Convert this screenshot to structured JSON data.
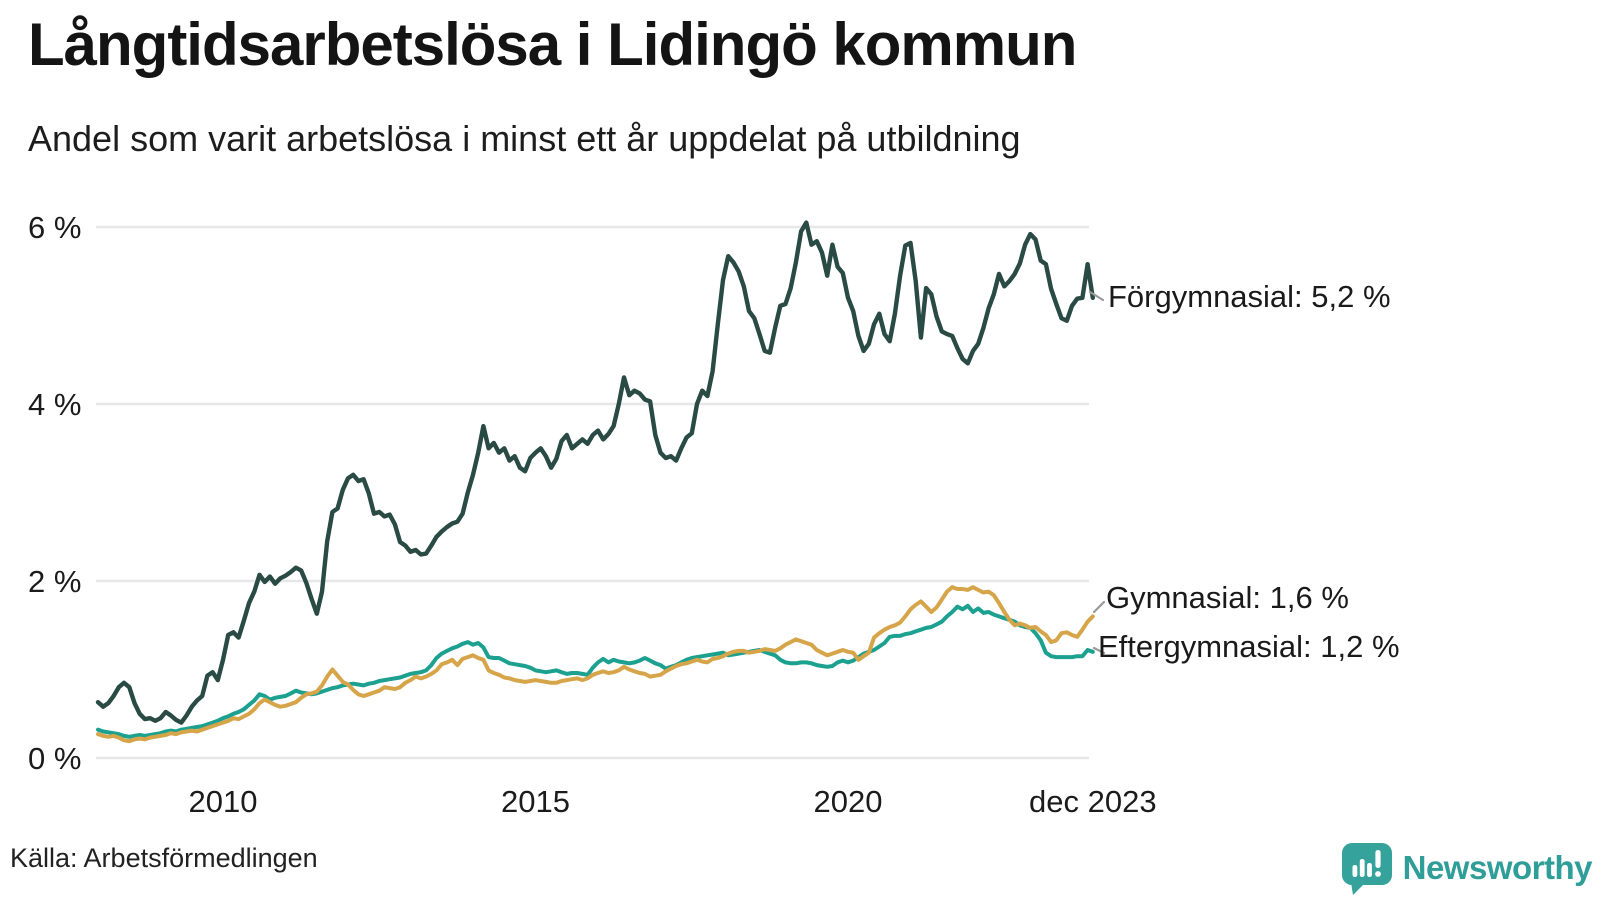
{
  "header": {
    "title": "Långtidsarbetslösa i Lidingö kommun",
    "subtitle": "Andel som varit arbetslösa i minst ett år uppdelat på utbildning"
  },
  "footer": {
    "source": "Källa: Arbetsförmedlingen",
    "brand": "Newsworthy",
    "brand_color": "#2f9e98"
  },
  "chart_data": {
    "type": "line",
    "title": "Långtidsarbetslösa i Lidingö kommun",
    "subtitle": "Andel som varit arbetslösa i minst ett år uppdelat på utbildning",
    "x_start_year": 2008,
    "x_end": "dec 2023",
    "points_per_year": 12,
    "ylim": [
      0,
      6.3
    ],
    "grid": "horizontal",
    "legend_position": "right-end-labels",
    "yticks": [
      {
        "value": 0,
        "label": "0 %"
      },
      {
        "value": 2,
        "label": "2 %"
      },
      {
        "value": 4,
        "label": "4 %"
      },
      {
        "value": 6,
        "label": "6 %"
      }
    ],
    "xticks": [
      {
        "value": 2010,
        "label": "2010"
      },
      {
        "value": 2015,
        "label": "2015"
      },
      {
        "value": 2020,
        "label": "2020"
      },
      {
        "value": 2023.917,
        "label": "dec 2023"
      }
    ],
    "series": [
      {
        "name": "Förgymnasial",
        "color": "#2a4a44",
        "stroke_width": 4.4,
        "end_label": "Förgymnasial: 5,2 %",
        "end_value": 5.2,
        "values": [
          0.63,
          0.58,
          0.62,
          0.7,
          0.8,
          0.85,
          0.8,
          0.62,
          0.5,
          0.44,
          0.45,
          0.42,
          0.45,
          0.52,
          0.48,
          0.43,
          0.4,
          0.48,
          0.58,
          0.65,
          0.7,
          0.93,
          0.97,
          0.88,
          1.11,
          1.39,
          1.42,
          1.36,
          1.55,
          1.75,
          1.88,
          2.07,
          1.99,
          2.05,
          1.97,
          2.03,
          2.06,
          2.1,
          2.15,
          2.12,
          1.98,
          1.8,
          1.63,
          1.88,
          2.45,
          2.78,
          2.82,
          3.03,
          3.16,
          3.2,
          3.13,
          3.15,
          2.99,
          2.76,
          2.78,
          2.73,
          2.75,
          2.64,
          2.44,
          2.4,
          2.33,
          2.35,
          2.3,
          2.31,
          2.4,
          2.5,
          2.56,
          2.61,
          2.65,
          2.67,
          2.76,
          3.0,
          3.2,
          3.45,
          3.75,
          3.5,
          3.56,
          3.45,
          3.5,
          3.36,
          3.41,
          3.28,
          3.24,
          3.39,
          3.45,
          3.5,
          3.41,
          3.28,
          3.38,
          3.58,
          3.65,
          3.5,
          3.55,
          3.6,
          3.55,
          3.65,
          3.7,
          3.6,
          3.66,
          3.75,
          4.0,
          4.3,
          4.1,
          4.15,
          4.12,
          4.05,
          4.03,
          3.65,
          3.45,
          3.39,
          3.41,
          3.36,
          3.5,
          3.62,
          3.67,
          4.0,
          4.15,
          4.09,
          4.37,
          4.9,
          5.4,
          5.67,
          5.6,
          5.5,
          5.33,
          5.05,
          4.97,
          4.79,
          4.6,
          4.58,
          4.86,
          5.11,
          5.13,
          5.31,
          5.6,
          5.95,
          6.05,
          5.8,
          5.84,
          5.71,
          5.45,
          5.8,
          5.55,
          5.48,
          5.2,
          5.05,
          4.77,
          4.6,
          4.68,
          4.9,
          5.02,
          4.79,
          4.71,
          5.02,
          5.45,
          5.79,
          5.82,
          5.39,
          4.75,
          5.31,
          5.24,
          4.99,
          4.82,
          4.79,
          4.77,
          4.63,
          4.51,
          4.46,
          4.6,
          4.68,
          4.86,
          5.08,
          5.24,
          5.47,
          5.33,
          5.39,
          5.47,
          5.59,
          5.8,
          5.92,
          5.86,
          5.62,
          5.58,
          5.3,
          5.13,
          4.97,
          4.94,
          5.11,
          5.19,
          5.2,
          5.58,
          5.2
        ]
      },
      {
        "name": "Eftergymnasial",
        "color": "#1ca08f",
        "stroke_width": 4,
        "end_label": "Eftergymnasial: 1,2 %",
        "end_value": 1.2,
        "values": [
          0.32,
          0.3,
          0.29,
          0.28,
          0.27,
          0.25,
          0.24,
          0.25,
          0.26,
          0.25,
          0.26,
          0.27,
          0.28,
          0.3,
          0.31,
          0.3,
          0.32,
          0.33,
          0.34,
          0.35,
          0.36,
          0.38,
          0.4,
          0.42,
          0.45,
          0.47,
          0.5,
          0.52,
          0.55,
          0.6,
          0.65,
          0.72,
          0.7,
          0.66,
          0.68,
          0.69,
          0.7,
          0.73,
          0.76,
          0.74,
          0.73,
          0.72,
          0.73,
          0.75,
          0.77,
          0.79,
          0.8,
          0.82,
          0.83,
          0.84,
          0.83,
          0.82,
          0.84,
          0.85,
          0.87,
          0.88,
          0.89,
          0.9,
          0.91,
          0.93,
          0.95,
          0.96,
          0.97,
          0.99,
          1.05,
          1.13,
          1.18,
          1.21,
          1.24,
          1.26,
          1.29,
          1.31,
          1.28,
          1.3,
          1.25,
          1.14,
          1.13,
          1.13,
          1.1,
          1.07,
          1.06,
          1.05,
          1.04,
          1.02,
          0.99,
          0.98,
          0.97,
          0.98,
          0.99,
          0.97,
          0.95,
          0.96,
          0.96,
          0.95,
          0.94,
          1.02,
          1.08,
          1.12,
          1.08,
          1.11,
          1.09,
          1.08,
          1.07,
          1.08,
          1.1,
          1.13,
          1.1,
          1.07,
          1.05,
          1.01,
          1.03,
          1.05,
          1.08,
          1.11,
          1.13,
          1.14,
          1.15,
          1.16,
          1.17,
          1.18,
          1.19,
          1.16,
          1.17,
          1.18,
          1.19,
          1.2,
          1.21,
          1.22,
          1.2,
          1.18,
          1.16,
          1.11,
          1.08,
          1.07,
          1.07,
          1.08,
          1.08,
          1.07,
          1.05,
          1.04,
          1.03,
          1.04,
          1.08,
          1.1,
          1.08,
          1.1,
          1.14,
          1.18,
          1.2,
          1.22,
          1.26,
          1.3,
          1.37,
          1.38,
          1.38,
          1.4,
          1.41,
          1.43,
          1.45,
          1.47,
          1.48,
          1.51,
          1.54,
          1.6,
          1.65,
          1.71,
          1.68,
          1.72,
          1.65,
          1.69,
          1.64,
          1.65,
          1.62,
          1.6,
          1.58,
          1.56,
          1.54,
          1.5,
          1.48,
          1.47,
          1.41,
          1.33,
          1.19,
          1.15,
          1.14,
          1.14,
          1.14,
          1.14,
          1.15,
          1.15,
          1.22,
          1.2
        ]
      },
      {
        "name": "Gymnasial",
        "color": "#d7a549",
        "stroke_width": 4,
        "end_label": "Gymnasial: 1,6 %",
        "end_value": 1.6,
        "values": [
          0.27,
          0.25,
          0.24,
          0.25,
          0.23,
          0.2,
          0.19,
          0.21,
          0.22,
          0.21,
          0.23,
          0.24,
          0.25,
          0.26,
          0.28,
          0.27,
          0.29,
          0.3,
          0.31,
          0.3,
          0.32,
          0.34,
          0.36,
          0.38,
          0.4,
          0.42,
          0.45,
          0.44,
          0.47,
          0.5,
          0.55,
          0.62,
          0.66,
          0.63,
          0.6,
          0.58,
          0.59,
          0.61,
          0.63,
          0.68,
          0.72,
          0.73,
          0.75,
          0.82,
          0.92,
          1.0,
          0.93,
          0.86,
          0.83,
          0.77,
          0.72,
          0.7,
          0.72,
          0.74,
          0.76,
          0.8,
          0.79,
          0.78,
          0.8,
          0.85,
          0.88,
          0.92,
          0.9,
          0.92,
          0.95,
          0.99,
          1.06,
          1.08,
          1.11,
          1.05,
          1.12,
          1.14,
          1.16,
          1.13,
          1.11,
          0.99,
          0.96,
          0.94,
          0.91,
          0.9,
          0.88,
          0.87,
          0.86,
          0.87,
          0.88,
          0.87,
          0.86,
          0.85,
          0.85,
          0.87,
          0.88,
          0.89,
          0.9,
          0.88,
          0.9,
          0.94,
          0.96,
          0.98,
          0.96,
          0.97,
          0.99,
          1.03,
          1.0,
          0.98,
          0.96,
          0.95,
          0.92,
          0.93,
          0.94,
          0.98,
          1.01,
          1.04,
          1.06,
          1.07,
          1.09,
          1.11,
          1.09,
          1.08,
          1.12,
          1.13,
          1.15,
          1.18,
          1.2,
          1.21,
          1.21,
          1.19,
          1.2,
          1.21,
          1.23,
          1.22,
          1.21,
          1.24,
          1.28,
          1.31,
          1.34,
          1.32,
          1.3,
          1.28,
          1.22,
          1.19,
          1.16,
          1.18,
          1.2,
          1.22,
          1.2,
          1.19,
          1.11,
          1.15,
          1.19,
          1.36,
          1.41,
          1.45,
          1.48,
          1.5,
          1.53,
          1.6,
          1.68,
          1.73,
          1.77,
          1.71,
          1.65,
          1.7,
          1.79,
          1.88,
          1.93,
          1.91,
          1.91,
          1.9,
          1.93,
          1.9,
          1.87,
          1.88,
          1.84,
          1.75,
          1.65,
          1.56,
          1.5,
          1.52,
          1.5,
          1.47,
          1.48,
          1.43,
          1.39,
          1.31,
          1.33,
          1.41,
          1.42,
          1.39,
          1.37,
          1.45,
          1.54,
          1.6
        ]
      }
    ]
  }
}
